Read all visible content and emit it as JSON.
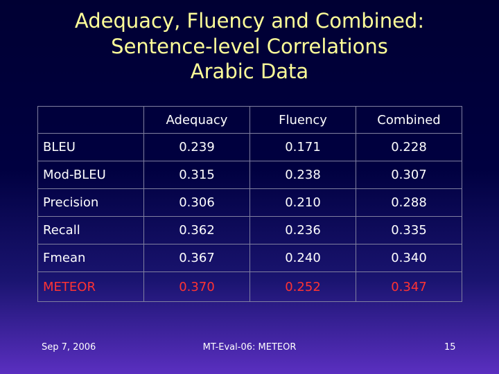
{
  "title": [
    "Adequacy, Fluency and Combined:",
    "Sentence-level Correlations",
    "Arabic Data"
  ],
  "table": {
    "header": [
      "",
      "Adequacy",
      "Fluency",
      "Combined"
    ],
    "rows": [
      [
        "BLEU",
        "0.239",
        "0.171",
        "0.228"
      ],
      [
        "Mod-BLEU",
        "0.315",
        "0.238",
        "0.307"
      ],
      [
        "Precision",
        "0.306",
        "0.210",
        "0.288"
      ],
      [
        "Recall",
        "0.362",
        "0.236",
        "0.335"
      ],
      [
        "Fmean",
        "0.367",
        "0.240",
        "0.340"
      ],
      [
        "METEOR",
        "0.370",
        "0.252",
        "0.347"
      ]
    ]
  },
  "footer": {
    "date": "Sep 7, 2006",
    "center": "MT-Eval-06: METEOR",
    "page": "15"
  }
}
